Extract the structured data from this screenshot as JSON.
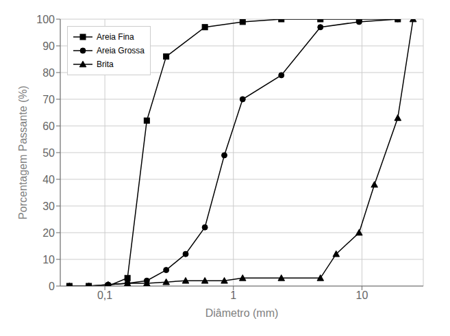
{
  "chart_data": {
    "type": "line",
    "xlabel": "Diâmetro (mm)",
    "ylabel": "Porcentagem Passante (%)",
    "log": "x",
    "xlim": [
      0.045,
      30
    ],
    "ylim": [
      0,
      100
    ],
    "xticks": [
      {
        "value": 0.1,
        "label": "0,1"
      },
      1,
      10
    ],
    "yticks": [
      0,
      10,
      20,
      30,
      40,
      50,
      60,
      70,
      80,
      90,
      100
    ],
    "grid": true,
    "legend": "upper left",
    "series": [
      {
        "name": "Areia Fina",
        "color": "#000000",
        "marker": "square",
        "x": [
          0.053,
          0.075,
          0.106,
          0.15,
          0.212,
          0.3,
          0.6,
          1.18,
          2.36,
          4.75,
          9.5,
          19.0
        ],
        "values": [
          0,
          0,
          0,
          3,
          62,
          86,
          97,
          99,
          100,
          100,
          100,
          100
        ]
      },
      {
        "name": "Areia Grossa",
        "color": "#000000",
        "marker": "circle",
        "x": [
          0.053,
          0.075,
          0.106,
          0.15,
          0.212,
          0.3,
          0.425,
          0.6,
          0.85,
          1.18,
          2.36,
          4.75,
          9.5,
          19.0
        ],
        "values": [
          0,
          0,
          0.5,
          1,
          2,
          6,
          12,
          22,
          49,
          70,
          79,
          97,
          99,
          100
        ]
      },
      {
        "name": "Brita",
        "color": "#000000",
        "marker": "triangle",
        "x": [
          0.053,
          0.075,
          0.106,
          0.15,
          0.212,
          0.3,
          0.425,
          0.6,
          0.85,
          1.18,
          2.36,
          4.75,
          6.3,
          9.5,
          12.5,
          19.0,
          25.0
        ],
        "values": [
          0,
          0,
          0.5,
          1,
          1,
          1.5,
          2,
          2,
          2,
          3,
          3,
          3,
          12,
          20,
          38,
          63,
          100
        ]
      }
    ]
  }
}
